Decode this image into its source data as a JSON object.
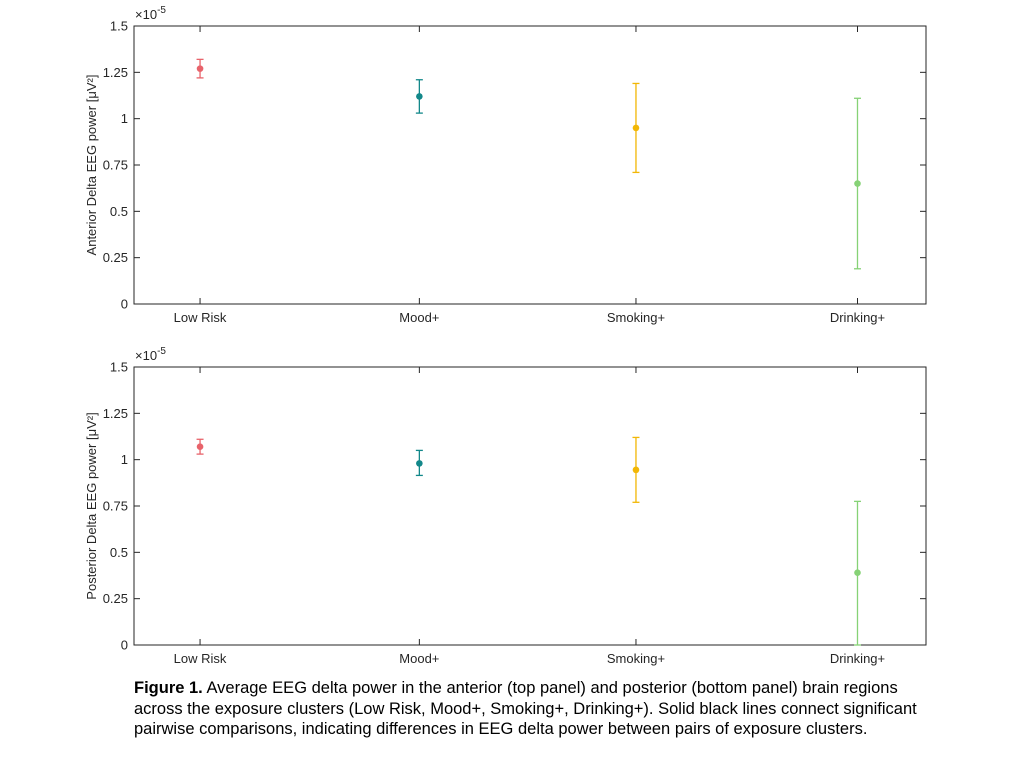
{
  "chart_data": [
    {
      "type": "errorbar",
      "panel": "top",
      "categories": [
        "Low Risk",
        "Mood+",
        "Smoking+",
        "Drinking+"
      ],
      "values": [
        1.27,
        1.12,
        0.95,
        0.65
      ],
      "lower": [
        1.22,
        1.03,
        0.71,
        0.19
      ],
      "upper": [
        1.32,
        1.21,
        1.19,
        1.11
      ],
      "colors": [
        "#e8636b",
        "#13888a",
        "#f2b705",
        "#86d276"
      ],
      "ylabel": "Anterior Delta EEG power [μV²]",
      "exponent": "×10",
      "exponent_power": "-5",
      "ylim": [
        0,
        1.5
      ],
      "yticks": [
        0,
        0.25,
        0.5,
        0.75,
        1,
        1.25,
        1.5
      ],
      "ytick_labels": [
        "0",
        "0.25",
        "0.5",
        "0.75",
        "1",
        "1.25",
        "1.5"
      ],
      "grid": false
    },
    {
      "type": "errorbar",
      "panel": "bottom",
      "categories": [
        "Low Risk",
        "Mood+",
        "Smoking+",
        "Drinking+"
      ],
      "values": [
        1.07,
        0.98,
        0.945,
        0.39
      ],
      "lower": [
        1.03,
        0.915,
        0.77,
        0.0
      ],
      "upper": [
        1.11,
        1.05,
        1.12,
        0.775
      ],
      "colors": [
        "#e8636b",
        "#13888a",
        "#f2b705",
        "#86d276"
      ],
      "ylabel": "Posterior Delta EEG power [μV²]",
      "exponent": "×10",
      "exponent_power": "-5",
      "ylim": [
        0,
        1.5
      ],
      "yticks": [
        0,
        0.25,
        0.5,
        0.75,
        1,
        1.25,
        1.5
      ],
      "ytick_labels": [
        "0",
        "0.25",
        "0.5",
        "0.75",
        "1",
        "1.25",
        "1.5"
      ],
      "grid": false
    }
  ],
  "caption": {
    "label": "Figure 1.",
    "text": " Average EEG delta power in the anterior (top panel) and posterior (bottom panel) brain regions across the exposure clusters (Low Risk, Mood+, Smoking+, Drinking+). Solid black lines connect significant pairwise comparisons, indicating differences in EEG delta power between pairs of exposure clusters."
  }
}
